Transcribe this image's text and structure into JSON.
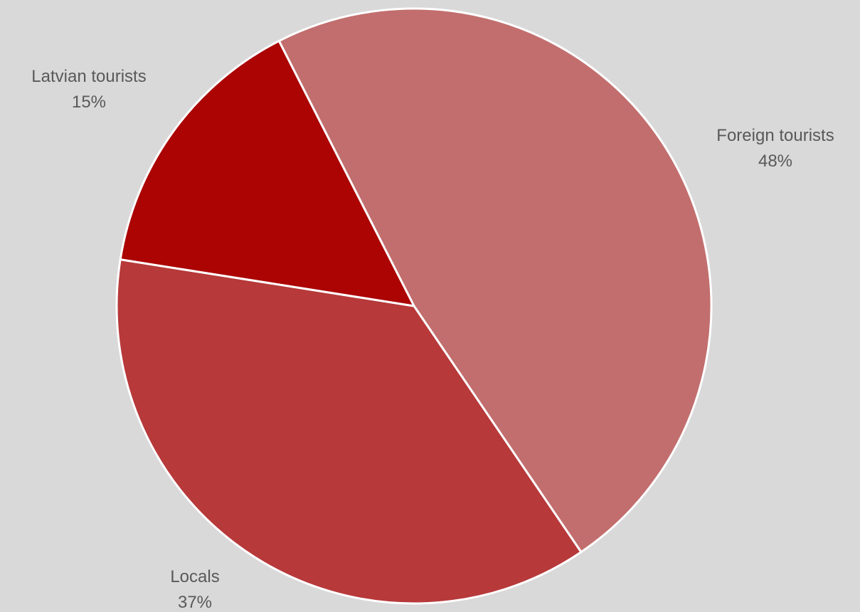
{
  "chart_data": {
    "type": "pie",
    "background_color": "#d9d9d9",
    "slice_border_color": "#ffffff",
    "label_color": "#595959",
    "start_angle_deg": -27,
    "direction": "clockwise",
    "slices": [
      {
        "label": "Foreign tourists",
        "value": 48,
        "value_label": "48%",
        "color": "#c26e6e"
      },
      {
        "label": "Locals",
        "value": 37,
        "value_label": "37%",
        "color": "#b7393a"
      },
      {
        "label": "Latvian tourists",
        "value": 15,
        "value_label": "15%",
        "color": "#ab0403"
      }
    ]
  }
}
